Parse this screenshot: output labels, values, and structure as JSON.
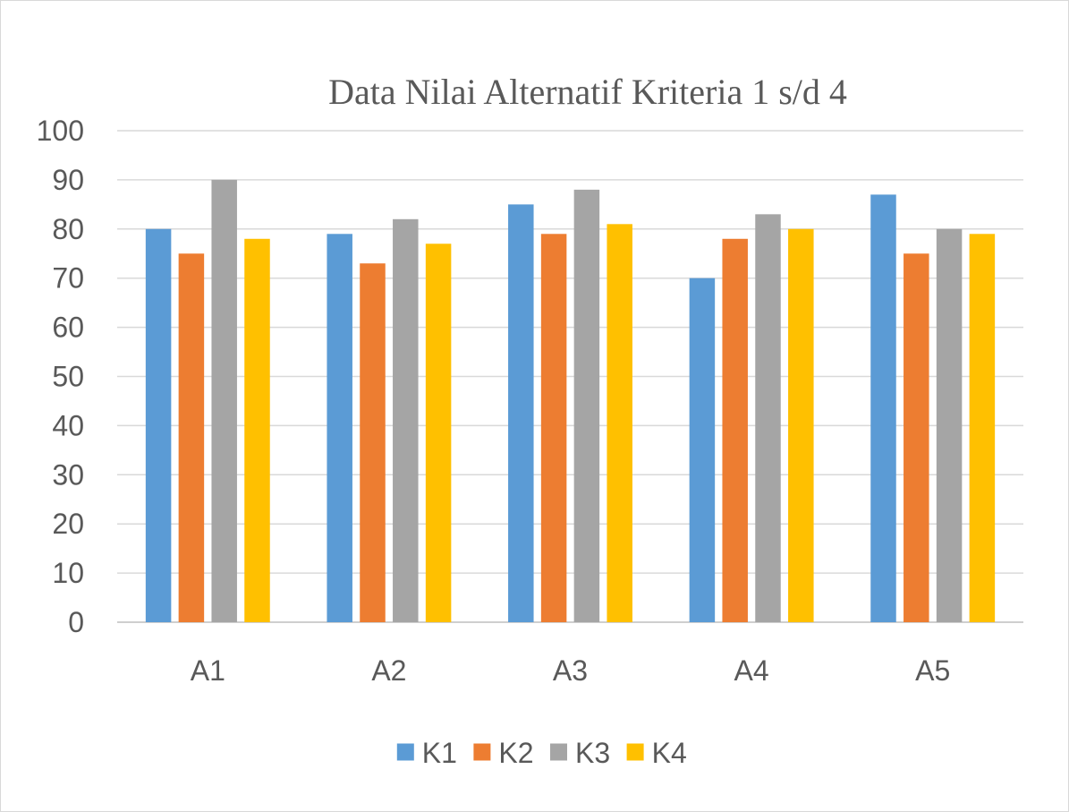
{
  "chart_data": {
    "type": "bar",
    "title": "Data Nilai Alternatif  Kriteria 1 s/d 4",
    "xlabel": "",
    "ylabel": "",
    "categories": [
      "A1",
      "A2",
      "A3",
      "A4",
      "A5"
    ],
    "series": [
      {
        "name": "K1",
        "color": "#5b9bd5",
        "values": [
          80,
          79,
          85,
          70,
          87
        ]
      },
      {
        "name": "K2",
        "color": "#ed7d31",
        "values": [
          75,
          73,
          79,
          78,
          75
        ]
      },
      {
        "name": "K3",
        "color": "#a5a5a5",
        "values": [
          90,
          82,
          88,
          83,
          80
        ]
      },
      {
        "name": "K4",
        "color": "#ffc000",
        "values": [
          78,
          77,
          81,
          80,
          79
        ]
      }
    ],
    "ylim": [
      0,
      100
    ],
    "yticks": [
      "0",
      "10",
      "20",
      "30",
      "40",
      "50",
      "60",
      "70",
      "80",
      "90",
      "100"
    ],
    "grid": true,
    "legend_position": "bottom"
  }
}
